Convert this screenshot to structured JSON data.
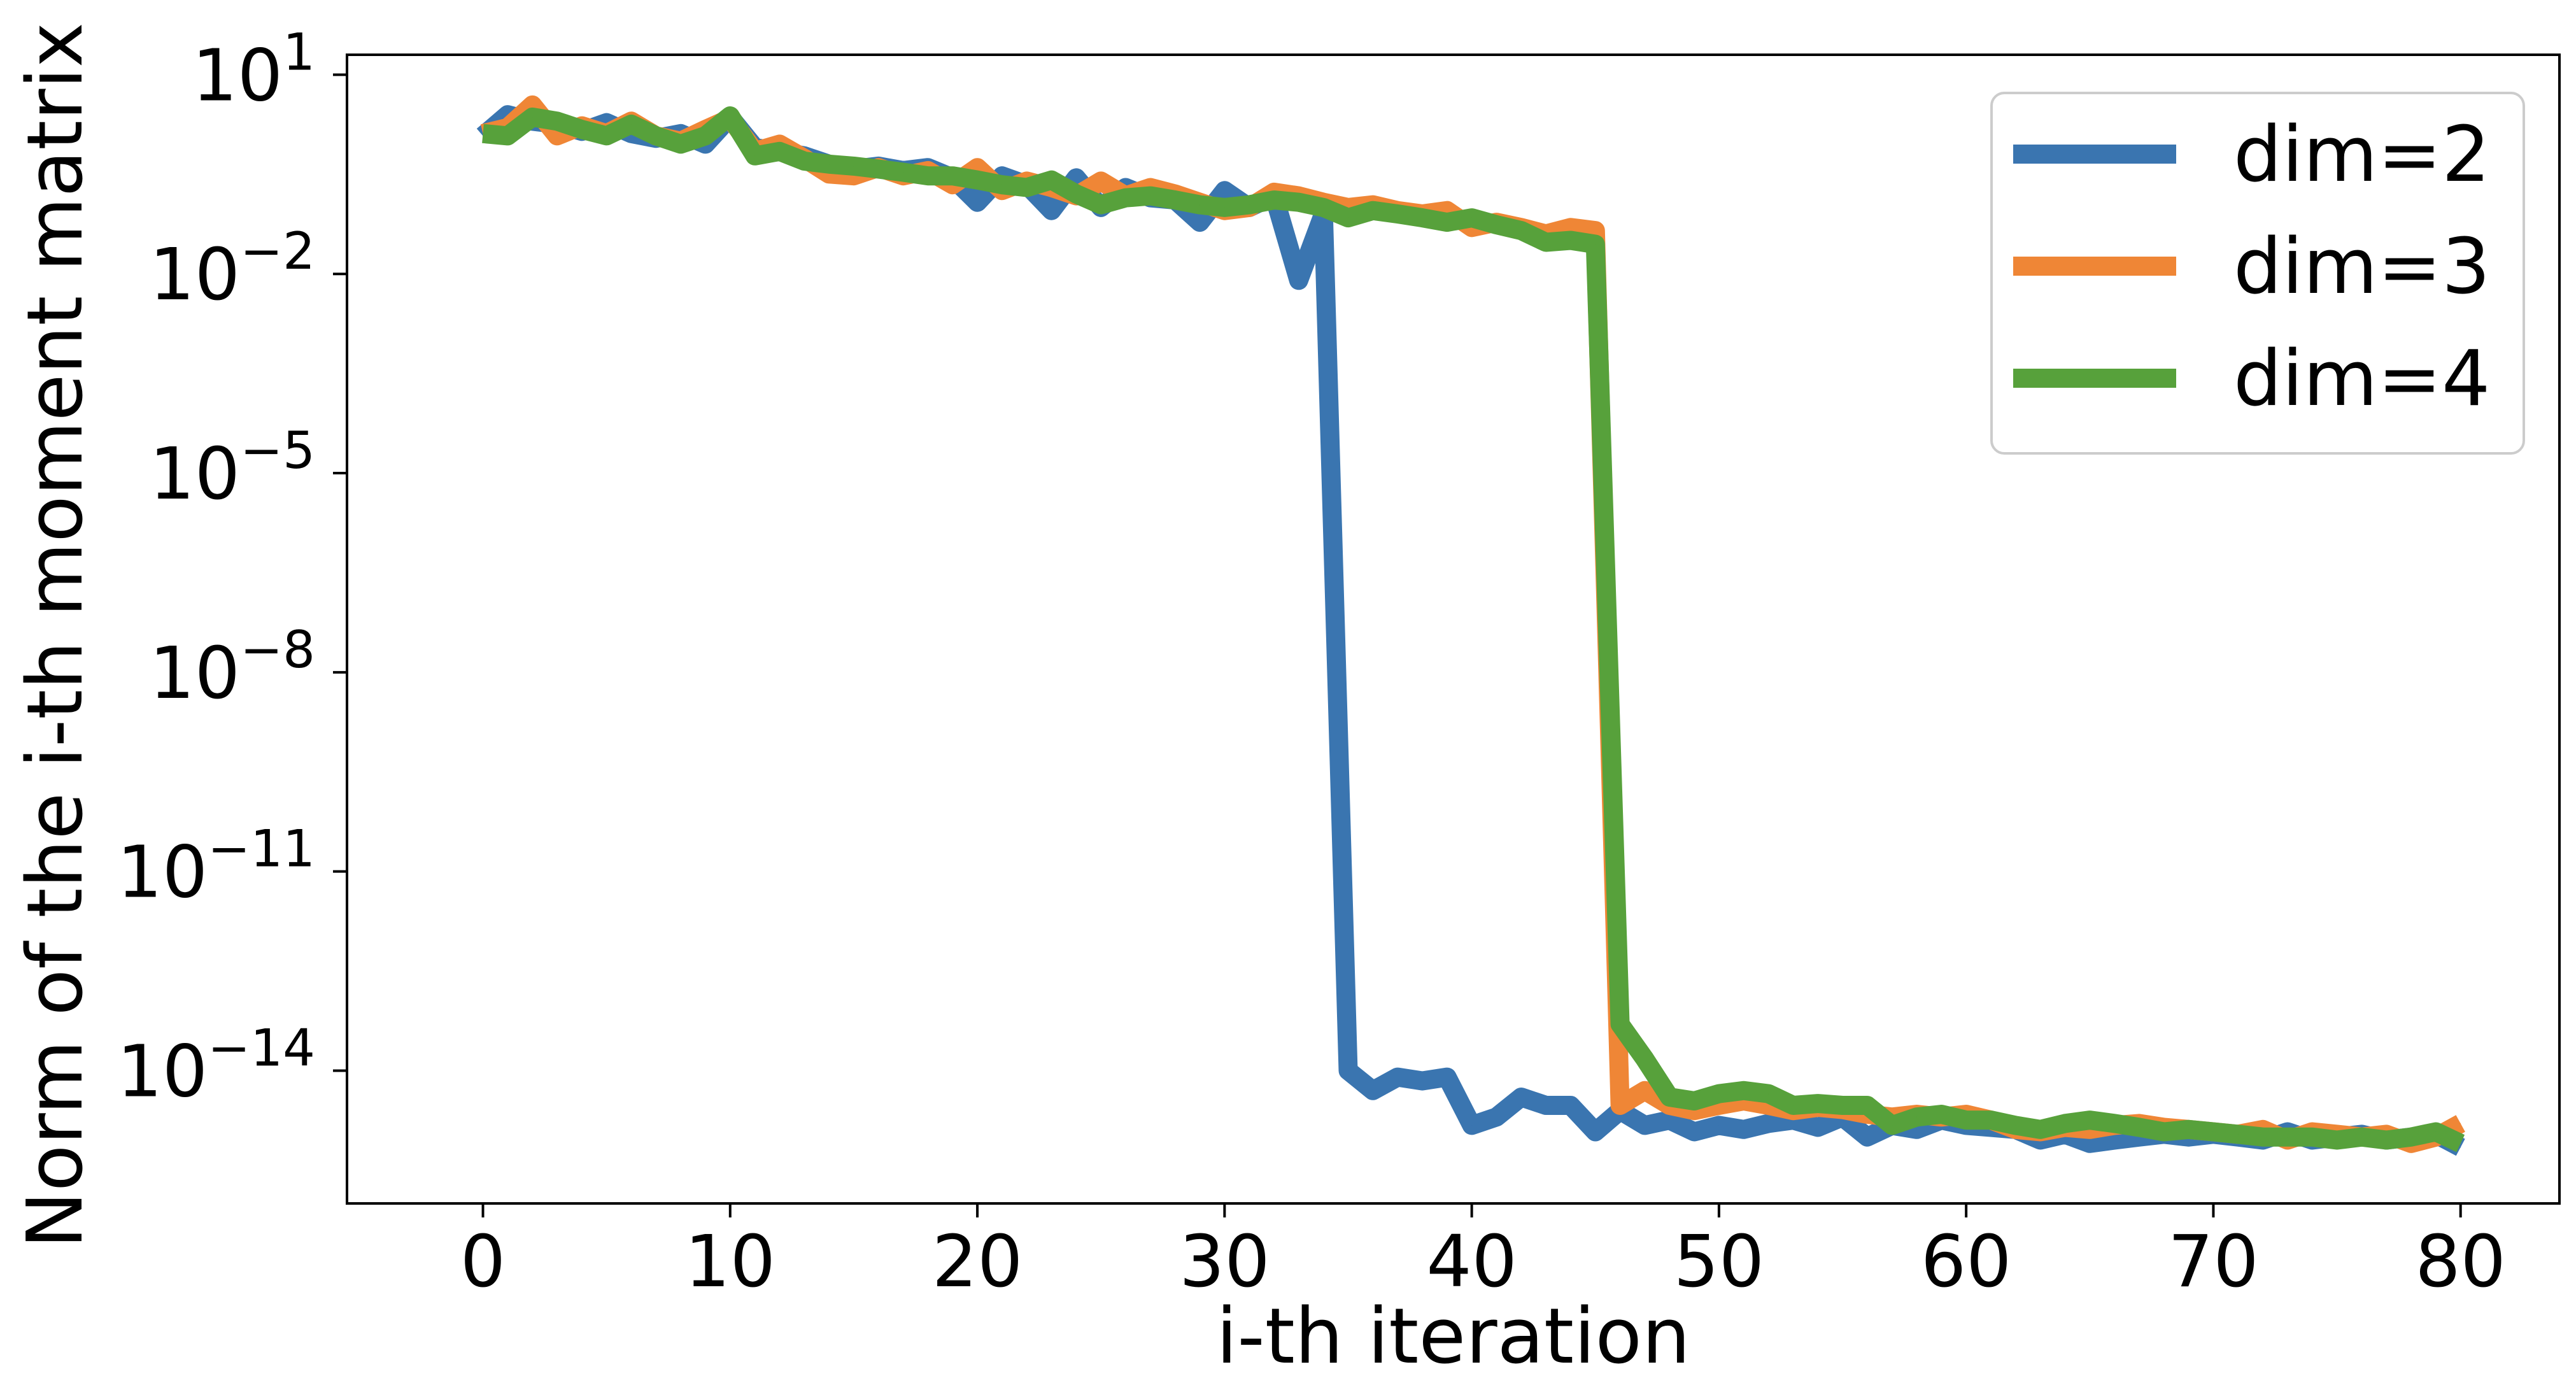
{
  "chart_data": {
    "type": "line",
    "title": "",
    "xlabel": "i-th iteration",
    "ylabel": "Norm of the i-th moment matrix",
    "xlim": [
      -5.5,
      84
    ],
    "ylim": [
      1e-16,
      20
    ],
    "yscale": "log",
    "xticks": [
      0,
      10,
      20,
      30,
      40,
      50,
      60,
      70,
      80
    ],
    "yticks": [
      {
        "base": "10",
        "exp": "1",
        "value": 10
      },
      {
        "base": "10",
        "exp": "−2",
        "value": 0.01
      },
      {
        "base": "10",
        "exp": "−5",
        "value": 1e-05
      },
      {
        "base": "10",
        "exp": "−8",
        "value": 1e-08
      },
      {
        "base": "10",
        "exp": "−11",
        "value": 1e-11
      },
      {
        "base": "10",
        "exp": "−14",
        "value": 1e-14
      }
    ],
    "grid": false,
    "legend_position": "top-right",
    "series": [
      {
        "name": "dim=2",
        "color": "#3a75b0",
        "x": [
          0,
          1,
          2,
          3,
          4,
          5,
          6,
          7,
          8,
          9,
          10,
          11,
          12,
          13,
          14,
          15,
          16,
          17,
          18,
          19,
          20,
          21,
          22,
          23,
          24,
          25,
          26,
          27,
          28,
          29,
          30,
          31,
          32,
          33,
          34,
          35,
          36,
          37,
          38,
          39,
          40,
          41,
          42,
          43,
          44,
          45,
          46,
          47,
          48,
          49,
          50,
          51,
          52,
          53,
          54,
          55,
          56,
          57,
          58,
          59,
          60,
          61,
          62,
          63,
          64,
          65,
          66,
          67,
          68,
          69,
          70,
          71,
          72,
          73,
          74,
          75,
          76,
          77,
          78,
          79,
          80
        ],
        "y": [
          1.2,
          2.5,
          2.0,
          1.8,
          1.4,
          1.9,
          1.3,
          1.1,
          1.3,
          0.9,
          2.3,
          0.8,
          0.7,
          0.6,
          0.45,
          0.38,
          0.42,
          0.36,
          0.4,
          0.28,
          0.12,
          0.3,
          0.22,
          0.09,
          0.28,
          0.1,
          0.2,
          0.14,
          0.13,
          0.06,
          0.18,
          0.1,
          0.15,
          0.008,
          0.08,
          1e-14,
          5e-15,
          8e-15,
          7e-15,
          8e-15,
          1.5e-15,
          2e-15,
          4e-15,
          3e-15,
          3e-15,
          1.2e-15,
          2.5e-15,
          1.5e-15,
          1.8e-15,
          1.2e-15,
          1.5e-15,
          1.3e-15,
          1.6e-15,
          1.8e-15,
          1.4e-15,
          2e-15,
          1e-15,
          1.5e-15,
          1.3e-15,
          1.8e-15,
          1.5e-15,
          1.4e-15,
          1.3e-15,
          9e-16,
          1.1e-15,
          8e-16,
          9e-16,
          1e-15,
          1.1e-15,
          1e-15,
          1.1e-15,
          1e-15,
          9e-16,
          1.2e-15,
          9e-16,
          1e-15,
          1.1e-15,
          9e-16,
          1e-15,
          1.1e-15,
          7e-16
        ]
      },
      {
        "name": "dim=3",
        "color": "#ef8636",
        "x": [
          0,
          1,
          2,
          3,
          4,
          5,
          6,
          7,
          8,
          9,
          10,
          11,
          12,
          13,
          14,
          15,
          16,
          17,
          18,
          19,
          20,
          21,
          22,
          23,
          24,
          25,
          26,
          27,
          28,
          29,
          30,
          31,
          32,
          33,
          34,
          35,
          36,
          37,
          38,
          39,
          40,
          41,
          42,
          43,
          44,
          45,
          46,
          47,
          48,
          49,
          50,
          51,
          52,
          53,
          54,
          55,
          56,
          57,
          58,
          59,
          60,
          61,
          62,
          63,
          64,
          65,
          66,
          67,
          68,
          69,
          70,
          71,
          72,
          73,
          74,
          75,
          76,
          77,
          78,
          79,
          80
        ],
        "y": [
          1.3,
          1.6,
          3.5,
          1.2,
          1.7,
          1.3,
          2.0,
          1.2,
          1.0,
          1.5,
          2.2,
          0.7,
          0.9,
          0.55,
          0.32,
          0.3,
          0.4,
          0.3,
          0.36,
          0.22,
          0.4,
          0.18,
          0.25,
          0.2,
          0.15,
          0.25,
          0.15,
          0.2,
          0.16,
          0.12,
          0.09,
          0.1,
          0.17,
          0.15,
          0.12,
          0.1,
          0.11,
          0.09,
          0.08,
          0.09,
          0.05,
          0.06,
          0.05,
          0.04,
          0.05,
          0.045,
          3e-15,
          5e-15,
          3e-15,
          2.5e-15,
          3e-15,
          3.5e-15,
          3e-15,
          2.5e-15,
          2.8e-15,
          2.6e-15,
          2.2e-15,
          2e-15,
          2.2e-15,
          2e-15,
          2.2e-15,
          1.8e-15,
          1.3e-15,
          1.2e-15,
          1.4e-15,
          1.3e-15,
          1.5e-15,
          1.6e-15,
          1.4e-15,
          1.3e-15,
          1.2e-15,
          1.1e-15,
          1.3e-15,
          9e-16,
          1.2e-15,
          1.1e-15,
          1e-15,
          1.1e-15,
          8e-16,
          1e-15,
          1.6e-15
        ]
      },
      {
        "name": "dim=4",
        "color": "#57a13b",
        "x": [
          0,
          1,
          2,
          3,
          4,
          5,
          6,
          7,
          8,
          9,
          10,
          11,
          12,
          13,
          14,
          15,
          16,
          17,
          18,
          19,
          20,
          21,
          22,
          23,
          24,
          25,
          26,
          27,
          28,
          29,
          30,
          31,
          32,
          33,
          34,
          35,
          36,
          37,
          38,
          39,
          40,
          41,
          42,
          43,
          44,
          45,
          46,
          47,
          48,
          49,
          50,
          51,
          52,
          53,
          54,
          55,
          56,
          57,
          58,
          59,
          60,
          61,
          62,
          63,
          64,
          65,
          66,
          67,
          68,
          69,
          70,
          71,
          72,
          73,
          74,
          75,
          76,
          77,
          78,
          79,
          80
        ],
        "y": [
          1.3,
          1.2,
          2.3,
          2.0,
          1.5,
          1.2,
          1.8,
          1.2,
          0.9,
          1.2,
          2.4,
          0.6,
          0.7,
          0.5,
          0.45,
          0.42,
          0.38,
          0.34,
          0.3,
          0.3,
          0.26,
          0.22,
          0.2,
          0.26,
          0.16,
          0.11,
          0.14,
          0.15,
          0.13,
          0.11,
          0.1,
          0.11,
          0.13,
          0.12,
          0.1,
          0.07,
          0.09,
          0.08,
          0.07,
          0.06,
          0.07,
          0.055,
          0.045,
          0.03,
          0.032,
          0.028,
          5e-14,
          1.5e-14,
          4e-15,
          3.5e-15,
          4.5e-15,
          5e-15,
          4.5e-15,
          3e-15,
          3.2e-15,
          3e-15,
          3e-15,
          1.5e-15,
          2e-15,
          2.2e-15,
          1.8e-15,
          1.8e-15,
          1.5e-15,
          1.3e-15,
          1.6e-15,
          1.8e-15,
          1.6e-15,
          1.4e-15,
          1.2e-15,
          1.3e-15,
          1.2e-15,
          1.1e-15,
          1e-15,
          1e-15,
          1e-15,
          9e-16,
          1e-15,
          9e-16,
          1e-15,
          1.2e-15,
          8e-16
        ]
      }
    ]
  },
  "colors": {
    "axis": "#000000",
    "background": "#ffffff",
    "legend_border": "#cccccc"
  }
}
